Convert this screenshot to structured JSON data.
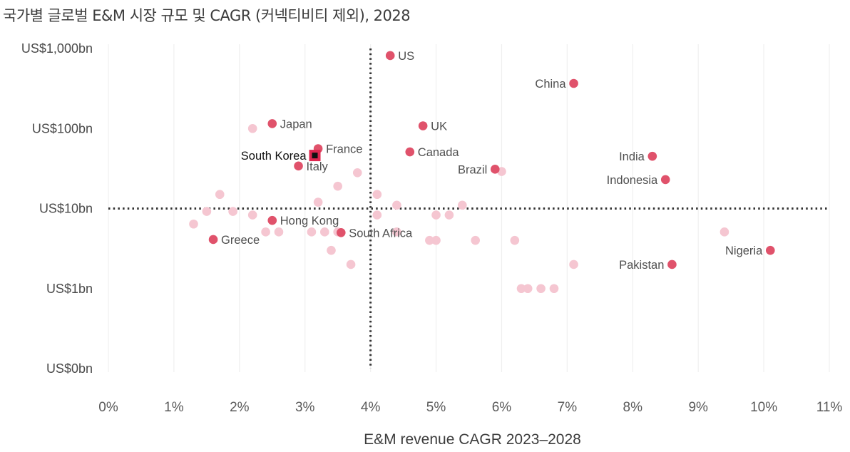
{
  "chart_data": {
    "type": "scatter",
    "title": "국가별 글로벌 E&M 시장 규모 및 CAGR (커넥티비티 제외), 2028",
    "xlabel": "E&M revenue CAGR 2023–2028",
    "ylabel": "",
    "x_scale": "linear",
    "y_scale": "log",
    "xlim": [
      0,
      11
    ],
    "ylim": [
      0.1,
      1000
    ],
    "x_ticks": [
      {
        "value": 0,
        "label": "0%"
      },
      {
        "value": 1,
        "label": "1%"
      },
      {
        "value": 2,
        "label": "2%"
      },
      {
        "value": 3,
        "label": "3%"
      },
      {
        "value": 4,
        "label": "4%"
      },
      {
        "value": 5,
        "label": "5%"
      },
      {
        "value": 6,
        "label": "6%"
      },
      {
        "value": 7,
        "label": "7%"
      },
      {
        "value": 8,
        "label": "8%"
      },
      {
        "value": 9,
        "label": "9%"
      },
      {
        "value": 10,
        "label": "10%"
      },
      {
        "value": 11,
        "label": "11%"
      }
    ],
    "y_ticks": [
      {
        "value": 1000,
        "label": "US$1,000bn"
      },
      {
        "value": 100,
        "label": "US$100bn"
      },
      {
        "value": 10,
        "label": "US$10bn"
      },
      {
        "value": 1,
        "label": "US$1bn"
      },
      {
        "value": 0.1,
        "label": "US$0bn"
      }
    ],
    "grid": {
      "vertical": true,
      "horizontal": false
    },
    "reference_lines": {
      "x": 4.0,
      "y": 10
    },
    "colors": {
      "highlight": "#e0526b",
      "muted": "#f5c6d1",
      "korea_marker": "#e0264f",
      "korea_inner": "#111111",
      "reference": "#333333"
    },
    "labeled_points": [
      {
        "name": "US",
        "x": 4.3,
        "y": 815,
        "label_side": "right"
      },
      {
        "name": "China",
        "x": 7.1,
        "y": 366,
        "label_side": "left"
      },
      {
        "name": "Japan",
        "x": 2.5,
        "y": 115,
        "label_side": "right"
      },
      {
        "name": "UK",
        "x": 4.8,
        "y": 108,
        "label_side": "right"
      },
      {
        "name": "France",
        "x": 3.2,
        "y": 56,
        "label_side": "right"
      },
      {
        "name": "South Korea",
        "x": 3.15,
        "y": 46,
        "label_side": "left",
        "highlight": true
      },
      {
        "name": "Italy",
        "x": 2.9,
        "y": 34,
        "label_side": "right"
      },
      {
        "name": "Canada",
        "x": 4.6,
        "y": 51,
        "label_side": "right"
      },
      {
        "name": "Brazil",
        "x": 5.9,
        "y": 31,
        "label_side": "left"
      },
      {
        "name": "India",
        "x": 8.3,
        "y": 45,
        "label_side": "left"
      },
      {
        "name": "Indonesia",
        "x": 8.5,
        "y": 23,
        "label_side": "left"
      },
      {
        "name": "Hong Kong",
        "x": 2.5,
        "y": 7.1,
        "label_side": "right"
      },
      {
        "name": "South Africa",
        "x": 3.55,
        "y": 5.0,
        "label_side": "right"
      },
      {
        "name": "Greece",
        "x": 1.6,
        "y": 4.1,
        "label_side": "right"
      },
      {
        "name": "Pakistan",
        "x": 8.6,
        "y": 2.0,
        "label_side": "left"
      },
      {
        "name": "Nigeria",
        "x": 10.1,
        "y": 3.0,
        "label_side": "left"
      }
    ],
    "other_points": [
      {
        "x": 2.2,
        "y": 100
      },
      {
        "x": 3.8,
        "y": 28
      },
      {
        "x": 6.0,
        "y": 29
      },
      {
        "x": 3.5,
        "y": 19
      },
      {
        "x": 1.7,
        "y": 15
      },
      {
        "x": 4.1,
        "y": 15
      },
      {
        "x": 3.2,
        "y": 12
      },
      {
        "x": 4.4,
        "y": 11
      },
      {
        "x": 5.4,
        "y": 11
      },
      {
        "x": 1.5,
        "y": 9.2
      },
      {
        "x": 1.9,
        "y": 9.2
      },
      {
        "x": 2.2,
        "y": 8.3
      },
      {
        "x": 4.1,
        "y": 8.3
      },
      {
        "x": 5.0,
        "y": 8.3
      },
      {
        "x": 5.2,
        "y": 8.3
      },
      {
        "x": 1.3,
        "y": 6.4
      },
      {
        "x": 2.4,
        "y": 5.1
      },
      {
        "x": 2.6,
        "y": 5.1
      },
      {
        "x": 3.1,
        "y": 5.1
      },
      {
        "x": 3.3,
        "y": 5.1
      },
      {
        "x": 3.5,
        "y": 5.1
      },
      {
        "x": 4.4,
        "y": 5.1
      },
      {
        "x": 4.9,
        "y": 4.0
      },
      {
        "x": 5.0,
        "y": 4.0
      },
      {
        "x": 5.6,
        "y": 4.0
      },
      {
        "x": 6.2,
        "y": 4.0
      },
      {
        "x": 9.4,
        "y": 5.1
      },
      {
        "x": 3.4,
        "y": 3.0
      },
      {
        "x": 3.7,
        "y": 2.0
      },
      {
        "x": 7.1,
        "y": 2.0
      },
      {
        "x": 6.3,
        "y": 1.0
      },
      {
        "x": 6.4,
        "y": 1.0
      },
      {
        "x": 6.6,
        "y": 1.0
      },
      {
        "x": 6.8,
        "y": 1.0
      }
    ]
  }
}
